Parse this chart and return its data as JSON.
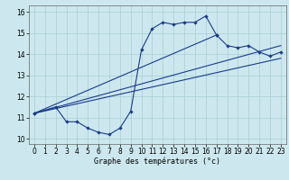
{
  "xlabel": "Graphe des températures (°c)",
  "background_color": "#cce8ee",
  "line_color": "#1a3a8c",
  "xlim": [
    -0.5,
    23.5
  ],
  "ylim": [
    9.75,
    16.3
  ],
  "xticks": [
    0,
    1,
    2,
    3,
    4,
    5,
    6,
    7,
    8,
    9,
    10,
    11,
    12,
    13,
    14,
    15,
    16,
    17,
    18,
    19,
    20,
    21,
    22,
    23
  ],
  "yticks": [
    10,
    11,
    12,
    13,
    14,
    15,
    16
  ],
  "line1_x": [
    0,
    2,
    3,
    4,
    5,
    6,
    7,
    8,
    9,
    10,
    11,
    12,
    13,
    14,
    15,
    16,
    17
  ],
  "line1_y": [
    11.2,
    11.5,
    10.8,
    10.8,
    10.5,
    10.3,
    10.2,
    10.5,
    11.3,
    14.2,
    15.2,
    15.5,
    15.4,
    15.5,
    15.5,
    15.8,
    14.9
  ],
  "line2_x": [
    0,
    17,
    18,
    19,
    20,
    21,
    22,
    23
  ],
  "line2_y": [
    11.2,
    14.9,
    14.4,
    14.3,
    14.4,
    14.1,
    13.9,
    14.1
  ],
  "line3_x": [
    0,
    23
  ],
  "line3_y": [
    11.2,
    14.4
  ],
  "line4_x": [
    0,
    23
  ],
  "line4_y": [
    11.2,
    13.8
  ],
  "xlabel_fontsize": 6.0,
  "tick_fontsize": 5.5
}
